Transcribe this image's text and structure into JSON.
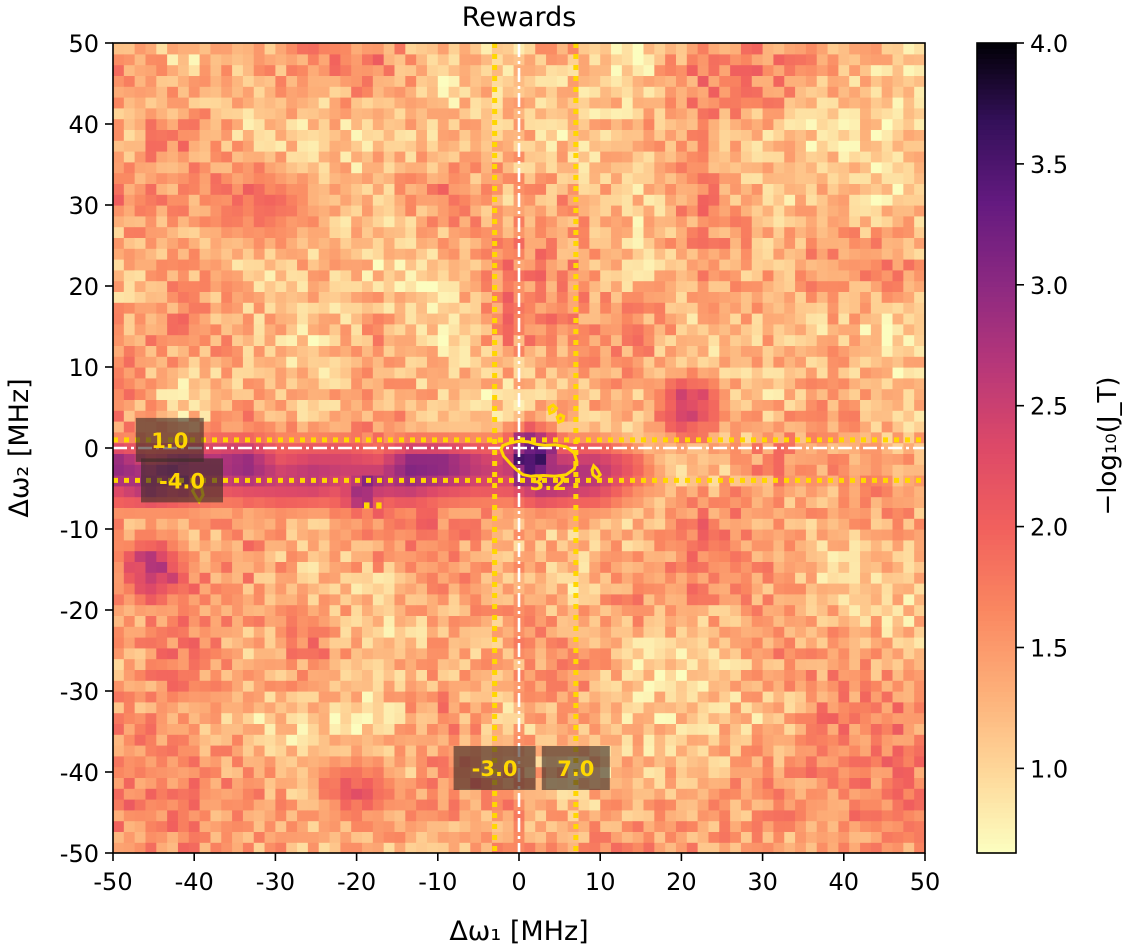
{
  "chart_data": {
    "type": "heatmap",
    "title": "Rewards",
    "xlabel": "Δω₁ [MHz]",
    "ylabel": "Δω₂ [MHz]",
    "xlim": [
      -50,
      50
    ],
    "ylim": [
      -50,
      50
    ],
    "xticks": [
      -50,
      -40,
      -30,
      -20,
      -10,
      0,
      10,
      20,
      30,
      40,
      50
    ],
    "yticks": [
      -50,
      -40,
      -30,
      -20,
      -10,
      0,
      10,
      20,
      30,
      40,
      50
    ],
    "tick_labels_x": [
      "-50",
      "-40",
      "-30",
      "-20",
      "-10",
      "0",
      "10",
      "20",
      "30",
      "40",
      "50"
    ],
    "tick_labels_y": [
      "-50",
      "-40",
      "-30",
      "-20",
      "-10",
      "0",
      "10",
      "20",
      "30",
      "40",
      "50"
    ],
    "grid_resolution": 75,
    "colormap": "magma_r",
    "colorbar": {
      "label": "−log₁₀(J_T)",
      "range": [
        0.65,
        4.0
      ],
      "ticks": [
        1.0,
        1.5,
        2.0,
        2.5,
        3.0,
        3.5,
        4.0
      ],
      "tick_labels": [
        "1.0",
        "1.5",
        "2.0",
        "2.5",
        "3.0",
        "3.5",
        "4.0"
      ]
    },
    "value_description": {
      "background_mean": 1.35,
      "horizontal_band": {
        "y_center": -3,
        "half_width": 8,
        "x_from": -50,
        "x_to": 25,
        "peak": 2.9
      },
      "dark_patches": [
        {
          "x": 1.5,
          "y": -1.5,
          "rx": 5,
          "ry": 5,
          "peak": 3.9
        },
        {
          "x": -42,
          "y": -3,
          "rx": 6,
          "ry": 4,
          "peak": 3.3
        },
        {
          "x": -19,
          "y": -5,
          "rx": 6,
          "ry": 4,
          "peak": 3.1
        },
        {
          "x": 21,
          "y": 5,
          "rx": 6,
          "ry": 6,
          "peak": 2.6
        },
        {
          "x": -45,
          "y": -15,
          "rx": 6,
          "ry": 6,
          "peak": 2.8
        },
        {
          "x": -20,
          "y": -42,
          "rx": 8,
          "ry": 6,
          "peak": 2.2
        },
        {
          "x": -32,
          "y": 30,
          "rx": 12,
          "ry": 8,
          "peak": 1.9
        }
      ]
    },
    "reference_lines": {
      "vertical_center": 0,
      "horizontal_center": 0,
      "vertical_dotted": [
        -3.0,
        7.0
      ],
      "horizontal_dotted": [
        1.0,
        -4.0
      ],
      "center_color": "#ffffff",
      "dotted_color": "#ffd700"
    },
    "annotations": [
      {
        "text": "1.0",
        "x": -43,
        "y": 1.0
      },
      {
        "text": "-4.0",
        "x": -41.5,
        "y": -4.0
      },
      {
        "text": "-3.0",
        "x": -3.0,
        "y": -39.5
      },
      {
        "text": "7.0",
        "x": 7.0,
        "y": -39.5
      },
      {
        "text": "3.2",
        "x": 3.6,
        "y": -4.2
      }
    ],
    "contour_color": "#ffd700",
    "contours": [
      [
        [
          -2.2,
          -0.2
        ],
        [
          -2.0,
          0.3
        ],
        [
          -1.2,
          0.6
        ],
        [
          0.0,
          0.85
        ],
        [
          1.2,
          0.75
        ],
        [
          2.2,
          0.45
        ],
        [
          3.2,
          0.35
        ],
        [
          4.5,
          0.4
        ],
        [
          5.8,
          0.15
        ],
        [
          6.8,
          -0.6
        ],
        [
          7.1,
          -1.6
        ],
        [
          6.8,
          -2.6
        ],
        [
          5.8,
          -3.3
        ],
        [
          4.5,
          -3.5
        ],
        [
          3.0,
          -3.4
        ],
        [
          1.5,
          -3.5
        ],
        [
          0.5,
          -3.3
        ],
        [
          -0.3,
          -2.7
        ],
        [
          -1.0,
          -2.0
        ],
        [
          -1.9,
          -1.0
        ],
        [
          -2.2,
          -0.2
        ]
      ],
      [
        [
          9.2,
          -2.2
        ],
        [
          9.6,
          -2.6
        ],
        [
          10.0,
          -3.3
        ],
        [
          9.6,
          -3.7
        ],
        [
          9.1,
          -3.3
        ],
        [
          9.0,
          -2.7
        ],
        [
          9.2,
          -2.2
        ]
      ],
      [
        [
          -39.8,
          -4.6
        ],
        [
          -39.1,
          -4.9
        ],
        [
          -38.9,
          -5.8
        ],
        [
          -39.4,
          -6.6
        ],
        [
          -39.8,
          -6.0
        ],
        [
          -40.2,
          -5.3
        ],
        [
          -39.8,
          -4.6
        ]
      ],
      [
        [
          3.8,
          4.3
        ],
        [
          4.3,
          4.5
        ],
        [
          4.6,
          4.9
        ],
        [
          4.2,
          5.3
        ],
        [
          3.7,
          5.0
        ],
        [
          3.8,
          4.3
        ]
      ],
      [
        [
          4.9,
          3.2
        ],
        [
          5.4,
          3.4
        ],
        [
          5.5,
          3.9
        ],
        [
          5.1,
          4.1
        ],
        [
          4.7,
          3.8
        ],
        [
          4.9,
          3.2
        ]
      ],
      [
        [
          -18.9,
          -6.9
        ],
        [
          -18.6,
          -6.9
        ],
        [
          -18.6,
          -7.3
        ],
        [
          -18.9,
          -7.3
        ],
        [
          -18.9,
          -6.9
        ]
      ],
      [
        [
          -17.4,
          -6.9
        ],
        [
          -17.1,
          -6.9
        ],
        [
          -17.1,
          -7.3
        ],
        [
          -17.4,
          -7.3
        ],
        [
          -17.4,
          -6.9
        ]
      ]
    ]
  }
}
